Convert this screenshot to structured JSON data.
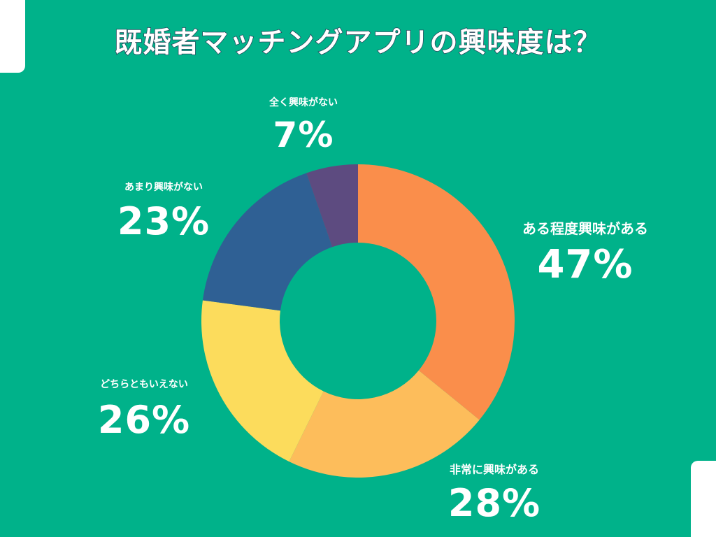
{
  "chart_data": {
    "type": "pie",
    "title": "既婚者マッチングアプリの興味度は？",
    "categories": [
      "全く興味がない",
      "あまり興味がない",
      "ある程度興味がある",
      "どちらともいえない",
      "非常に興味がある"
    ],
    "values": [
      7,
      23,
      47,
      26,
      28
    ],
    "value_labels": [
      "7%",
      "23%",
      "47%",
      "26%",
      "28%"
    ],
    "colors": {
      "ある程度興味がある": "#fa8e4b",
      "非常に興味がある": "#fdbd5b",
      "どちらともいえない": "#fcdc5c",
      "あまり興味がない": "#2f6094",
      "全く興味がない": "#5d4b80"
    },
    "donut": true,
    "legend": "none"
  }
}
